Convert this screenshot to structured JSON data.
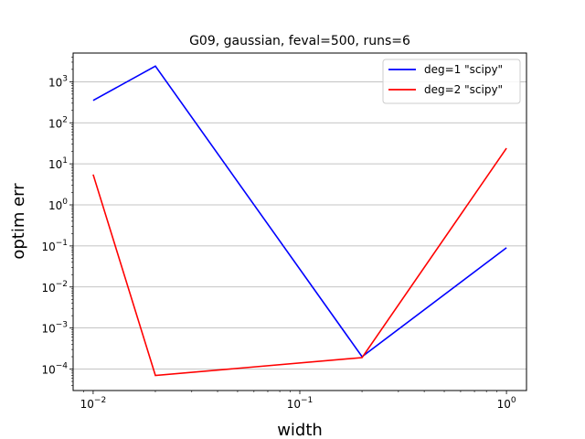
{
  "chart_data": {
    "type": "line",
    "title": "G09, gaussian, feval=500, runs=6",
    "xlabel": "width",
    "ylabel": "optim err",
    "xscale": "log",
    "yscale": "log",
    "xlim": [
      0.008,
      1.25
    ],
    "ylim": [
      3e-05,
      5000
    ],
    "grid": "y-major",
    "legend": "top-right",
    "x_ticks": [
      {
        "value": 0.01,
        "base": "10",
        "exp": "−2"
      },
      {
        "value": 0.1,
        "base": "10",
        "exp": "−1"
      },
      {
        "value": 1,
        "base": "10",
        "exp": "0"
      }
    ],
    "y_ticks": [
      {
        "value": 0.0001,
        "base": "10",
        "exp": "−4"
      },
      {
        "value": 0.001,
        "base": "10",
        "exp": "−3"
      },
      {
        "value": 0.01,
        "base": "10",
        "exp": "−2"
      },
      {
        "value": 0.1,
        "base": "10",
        "exp": "−1"
      },
      {
        "value": 1,
        "base": "10",
        "exp": "0"
      },
      {
        "value": 10,
        "base": "10",
        "exp": "1"
      },
      {
        "value": 100,
        "base": "10",
        "exp": "2"
      },
      {
        "value": 1000,
        "base": "10",
        "exp": "3"
      }
    ],
    "series": [
      {
        "name": "deg=1 \"scipy\"",
        "color": "#0000ff",
        "x": [
          0.01,
          0.02,
          0.2,
          1
        ],
        "values": [
          350,
          2400,
          0.0002,
          0.09
        ]
      },
      {
        "name": "deg=2 \"scipy\"",
        "color": "#ff0000",
        "x": [
          0.01,
          0.02,
          0.2,
          1
        ],
        "values": [
          5.5,
          7e-05,
          0.00019,
          24
        ]
      }
    ]
  }
}
